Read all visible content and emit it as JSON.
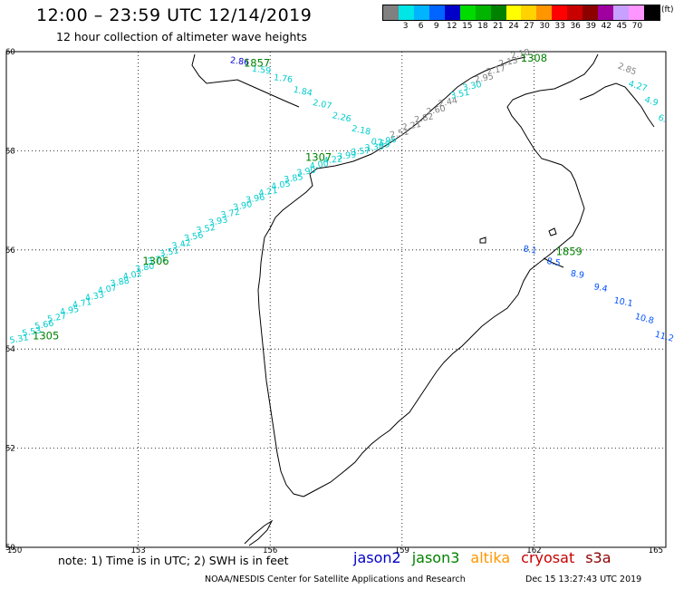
{
  "header": {
    "title": "12:00 – 23:59 UTC 12/14/2019",
    "subtitle": "12 hour collection of altimeter wave heights"
  },
  "scale": {
    "unit": "(ft)",
    "bins": [
      {
        "label": "",
        "color": "#808080"
      },
      {
        "label": "3",
        "color": "#00e5e5"
      },
      {
        "label": "6",
        "color": "#00b4ff"
      },
      {
        "label": "9",
        "color": "#0064ff"
      },
      {
        "label": "12",
        "color": "#0000c8"
      },
      {
        "label": "15",
        "color": "#00dc00"
      },
      {
        "label": "18",
        "color": "#00b400"
      },
      {
        "label": "21",
        "color": "#008200"
      },
      {
        "label": "24",
        "color": "#ffff00"
      },
      {
        "label": "27",
        "color": "#ffd200"
      },
      {
        "label": "30",
        "color": "#ff9600"
      },
      {
        "label": "33",
        "color": "#ff0000"
      },
      {
        "label": "36",
        "color": "#c80000"
      },
      {
        "label": "39",
        "color": "#8c0000"
      },
      {
        "label": "42",
        "color": "#a000a0"
      },
      {
        "label": "45",
        "color": "#c8a0ff"
      },
      {
        "label": "70",
        "color": "#ff96ff"
      },
      {
        "label": "",
        "color": "#000000"
      }
    ]
  },
  "map": {
    "lon_ticks": [
      "150",
      "153",
      "156",
      "159",
      "162",
      "165"
    ],
    "lat_ticks": [
      "60",
      "58",
      "56",
      "54",
      "52",
      "50"
    ],
    "tracks": [
      {
        "id": "1305",
        "color": "#00cccc",
        "times": [
          {
            "label": "1305",
            "lon": 150.9,
            "lat": 54.2
          },
          {
            "label": "1306",
            "lon": 153.4,
            "lat": 55.7
          },
          {
            "label": "1307",
            "lon": 157.1,
            "lat": 57.8
          },
          {
            "label": "1308",
            "lon": 162.0,
            "lat": 59.8
          }
        ],
        "values": [
          "5.31",
          "5.53",
          "5.66",
          "5.27",
          "4.95",
          "4.71",
          "4.33",
          "4.07",
          "3.88",
          "4.02",
          "3.80",
          "3.71",
          "3.51",
          "3.42",
          "3.56",
          "3.52",
          "3.93",
          "3.72",
          "3.90",
          "3.96",
          "4.21",
          "4.05",
          "3.85",
          "3.90",
          "4.00",
          "4.22",
          "3.99",
          "3.57",
          "3.38",
          "2.96",
          "2.51",
          "2.21",
          "2.82",
          "2.60",
          "2.44",
          "3.51",
          "3.30",
          "2.95",
          "2.17",
          "2.13",
          "2.18"
        ]
      },
      {
        "id": "1857",
        "color": "#00cccc",
        "times": [
          {
            "label": "1857",
            "lon": 155.7,
            "lat": 59.7
          }
        ],
        "values": [
          "2.86",
          "1.59",
          "1.76",
          "1.84",
          "2.07",
          "2.26",
          "2.18",
          "0.59"
        ]
      },
      {
        "id": "ne",
        "color": "#00cccc",
        "times": [],
        "values": [
          "2.85",
          "4.27",
          "4.9",
          "6."
        ]
      },
      {
        "id": "1859",
        "color": "#0050ff",
        "times": [
          {
            "label": "1859",
            "lon": 162.8,
            "lat": 55.9
          }
        ],
        "values": [
          "8.1",
          "8.5",
          "8.9",
          "9.4",
          "10.1",
          "10.8",
          "11.2"
        ]
      }
    ]
  },
  "footer": {
    "note": "note:  1) Time is in UTC;  2) SWH is in feet",
    "satellites": [
      {
        "name": "jason2",
        "color": "#0000c8"
      },
      {
        "name": "jason3",
        "color": "#008200"
      },
      {
        "name": "altika",
        "color": "#ff9600"
      },
      {
        "name": "cryosat",
        "color": "#c80000"
      },
      {
        "name": "s3a",
        "color": "#8c0000"
      }
    ],
    "credit": "NOAA/NESDIS Center for Satellite Applications and Research",
    "stamp": "Dec 15 13:27:43 UTC 2019"
  }
}
